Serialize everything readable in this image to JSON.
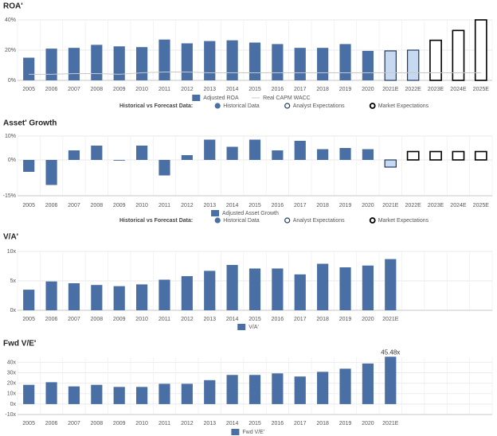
{
  "chart_data": [
    {
      "type": "bar",
      "title": "ROA'",
      "categories": [
        "2005",
        "2006",
        "2007",
        "2008",
        "2009",
        "2010",
        "2011",
        "2012",
        "2013",
        "2014",
        "2015",
        "2016",
        "2017",
        "2018",
        "2019",
        "2020",
        "2021E",
        "2022E",
        "2023E",
        "2024E",
        "2025E"
      ],
      "series": [
        {
          "name": "Adjusted ROA",
          "color": "#4a6fa5",
          "values": [
            15,
            21,
            21.5,
            23.5,
            22.5,
            22,
            27,
            24.5,
            26,
            26.5,
            25,
            24,
            21.5,
            21.5,
            24,
            19.5,
            19.5,
            20,
            26.5,
            33,
            40
          ]
        },
        {
          "name": "Real CAPM WACC",
          "type": "line",
          "color": "#c8c8c8",
          "values": [
            4,
            4,
            4.5,
            4.5,
            4,
            5,
            5.5,
            5.5,
            5,
            5,
            5,
            5,
            5,
            5,
            5,
            5,
            5,
            5,
            5,
            5,
            5
          ]
        }
      ],
      "kinds": [
        0,
        0,
        0,
        0,
        0,
        0,
        0,
        0,
        0,
        0,
        0,
        0,
        0,
        0,
        0,
        0,
        1,
        1,
        2,
        2,
        2
      ],
      "kind_legend": {
        "title": "Historical vs Forecast Data:",
        "items": [
          {
            "name": "Historical Data",
            "fill": "#4a6fa5",
            "stroke": "#4a6fa5"
          },
          {
            "name": "Analyst Expectations",
            "fill": "#c6d9f0",
            "stroke": "#1f3864"
          },
          {
            "name": "Market Expectations",
            "fill": "#ffffff",
            "stroke": "#000000"
          }
        ]
      },
      "ylim": [
        0,
        40
      ],
      "yticks": [
        {
          "value": 0,
          "label": "0%"
        },
        {
          "value": 20,
          "label": "20%"
        },
        {
          "value": 40,
          "label": "40%"
        }
      ],
      "grid": true
    },
    {
      "type": "bar",
      "title": "Asset' Growth",
      "categories": [
        "2005",
        "2006",
        "2007",
        "2008",
        "2009",
        "2010",
        "2011",
        "2012",
        "2013",
        "2014",
        "2015",
        "2016",
        "2017",
        "2018",
        "2019",
        "2020",
        "2021E",
        "2022E",
        "2023E",
        "2024E",
        "2025E"
      ],
      "series": [
        {
          "name": "Adjusted Asset Growth",
          "color": "#4a6fa5",
          "values": [
            -5,
            -10.5,
            4,
            6,
            -0.3,
            6,
            -6.5,
            2,
            8.5,
            5.5,
            8.5,
            4,
            8,
            4.5,
            5,
            4.5,
            -3,
            3.5,
            3.5,
            3.5,
            3.5
          ]
        }
      ],
      "kinds": [
        0,
        0,
        0,
        0,
        0,
        0,
        0,
        0,
        0,
        0,
        0,
        0,
        0,
        0,
        0,
        0,
        1,
        2,
        2,
        2,
        2
      ],
      "kind_legend": {
        "title": "Historical vs Forecast Data:",
        "items": [
          {
            "name": "Historical Data",
            "fill": "#4a6fa5",
            "stroke": "#4a6fa5"
          },
          {
            "name": "Analyst Expectations",
            "fill": "#c6d9f0",
            "stroke": "#1f3864"
          },
          {
            "name": "Market Expectations",
            "fill": "#ffffff",
            "stroke": "#000000"
          }
        ]
      },
      "ylim": [
        -15,
        10
      ],
      "yticks": [
        {
          "value": -15,
          "label": "-15%"
        },
        {
          "value": 0,
          "label": "0%"
        },
        {
          "value": 10,
          "label": "10%"
        }
      ],
      "grid": true
    },
    {
      "type": "bar",
      "title": "V/A'",
      "categories": [
        "2005",
        "2006",
        "2007",
        "2008",
        "2009",
        "2010",
        "2011",
        "2012",
        "2013",
        "2014",
        "2015",
        "2016",
        "2017",
        "2018",
        "2019",
        "2020",
        "2021E",
        null,
        null,
        null,
        null
      ],
      "series": [
        {
          "name": "V/A'",
          "color": "#4a6fa5",
          "values": [
            3.5,
            4.9,
            4.6,
            4.3,
            4.1,
            4.4,
            5.2,
            5.8,
            6.7,
            7.7,
            7.1,
            7.1,
            6.1,
            7.9,
            7.3,
            7.6,
            8.7,
            null,
            null,
            null,
            null
          ]
        }
      ],
      "ylim": [
        0,
        10
      ],
      "yticks": [
        {
          "value": 0,
          "label": "0x"
        },
        {
          "value": 5,
          "label": "5x"
        },
        {
          "value": 10,
          "label": "10x"
        }
      ],
      "grid": true
    },
    {
      "type": "bar",
      "title": "Fwd V/E'",
      "categories": [
        "2005",
        "2006",
        "2007",
        "2008",
        "2009",
        "2010",
        "2011",
        "2012",
        "2013",
        "2014",
        "2015",
        "2016",
        "2017",
        "2018",
        "2019",
        "2020",
        "2021E",
        null,
        null,
        null,
        null
      ],
      "series": [
        {
          "name": "Fwd V/E'",
          "color": "#4a6fa5",
          "values": [
            18.5,
            21,
            17,
            18.5,
            16.5,
            16.5,
            19.5,
            19.5,
            23,
            28,
            28,
            29.5,
            26.5,
            31,
            34,
            39,
            45.48,
            null,
            null,
            null,
            null
          ],
          "value_labels": [
            null,
            null,
            null,
            null,
            null,
            null,
            null,
            null,
            null,
            null,
            null,
            null,
            null,
            null,
            null,
            null,
            "45.48x",
            null,
            null,
            null,
            null
          ]
        }
      ],
      "ylim": [
        -10,
        45
      ],
      "yticks": [
        {
          "value": -10,
          "label": "-10x"
        },
        {
          "value": 0,
          "label": "0x"
        },
        {
          "value": 10,
          "label": "10x"
        },
        {
          "value": 20,
          "label": "20x"
        },
        {
          "value": 30,
          "label": "30x"
        },
        {
          "value": 40,
          "label": "40x"
        }
      ],
      "grid": true
    }
  ]
}
